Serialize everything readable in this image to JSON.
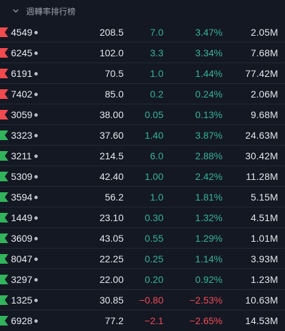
{
  "header": {
    "title": "週轉率排行榜"
  },
  "colors": {
    "up": "#33b39b",
    "down": "#f04b55",
    "flag_red": "#f14a4f",
    "flag_green": "#31b45b"
  },
  "rows": [
    {
      "symbol": "4549",
      "flag": "red",
      "price": "208.5",
      "change": "7.0",
      "pct": "3.47%",
      "volume": "2.05M",
      "dir": "up"
    },
    {
      "symbol": "6245",
      "flag": "red",
      "price": "102.0",
      "change": "3.3",
      "pct": "3.34%",
      "volume": "7.68M",
      "dir": "up"
    },
    {
      "symbol": "6191",
      "flag": "red",
      "price": "70.5",
      "change": "1.0",
      "pct": "1.44%",
      "volume": "77.42M",
      "dir": "up"
    },
    {
      "symbol": "7402",
      "flag": "red",
      "price": "85.0",
      "change": "0.2",
      "pct": "0.24%",
      "volume": "2.06M",
      "dir": "up"
    },
    {
      "symbol": "3059",
      "flag": "red",
      "price": "38.00",
      "change": "0.05",
      "pct": "0.13%",
      "volume": "9.68M",
      "dir": "up"
    },
    {
      "symbol": "3323",
      "flag": "green",
      "price": "37.60",
      "change": "1.40",
      "pct": "3.87%",
      "volume": "24.63M",
      "dir": "up"
    },
    {
      "symbol": "3211",
      "flag": "green",
      "price": "214.5",
      "change": "6.0",
      "pct": "2.88%",
      "volume": "30.42M",
      "dir": "up"
    },
    {
      "symbol": "5309",
      "flag": "green",
      "price": "42.40",
      "change": "1.00",
      "pct": "2.42%",
      "volume": "11.28M",
      "dir": "up"
    },
    {
      "symbol": "3594",
      "flag": "green",
      "price": "56.2",
      "change": "1.0",
      "pct": "1.81%",
      "volume": "5.15M",
      "dir": "up"
    },
    {
      "symbol": "1449",
      "flag": "green",
      "price": "23.10",
      "change": "0.30",
      "pct": "1.32%",
      "volume": "4.51M",
      "dir": "up"
    },
    {
      "symbol": "3609",
      "flag": "green",
      "price": "43.05",
      "change": "0.55",
      "pct": "1.29%",
      "volume": "1.01M",
      "dir": "up"
    },
    {
      "symbol": "8047",
      "flag": "green",
      "price": "22.25",
      "change": "0.25",
      "pct": "1.14%",
      "volume": "3.93M",
      "dir": "up"
    },
    {
      "symbol": "3297",
      "flag": "green",
      "price": "22.00",
      "change": "0.20",
      "pct": "0.92%",
      "volume": "1.23M",
      "dir": "up"
    },
    {
      "symbol": "1325",
      "flag": "green",
      "price": "30.85",
      "change": "−0.80",
      "pct": "−2.53%",
      "volume": "10.63M",
      "dir": "down"
    },
    {
      "symbol": "6928",
      "flag": "green",
      "price": "77.2",
      "change": "−2.1",
      "pct": "−2.65%",
      "volume": "14.53M",
      "dir": "down"
    }
  ]
}
